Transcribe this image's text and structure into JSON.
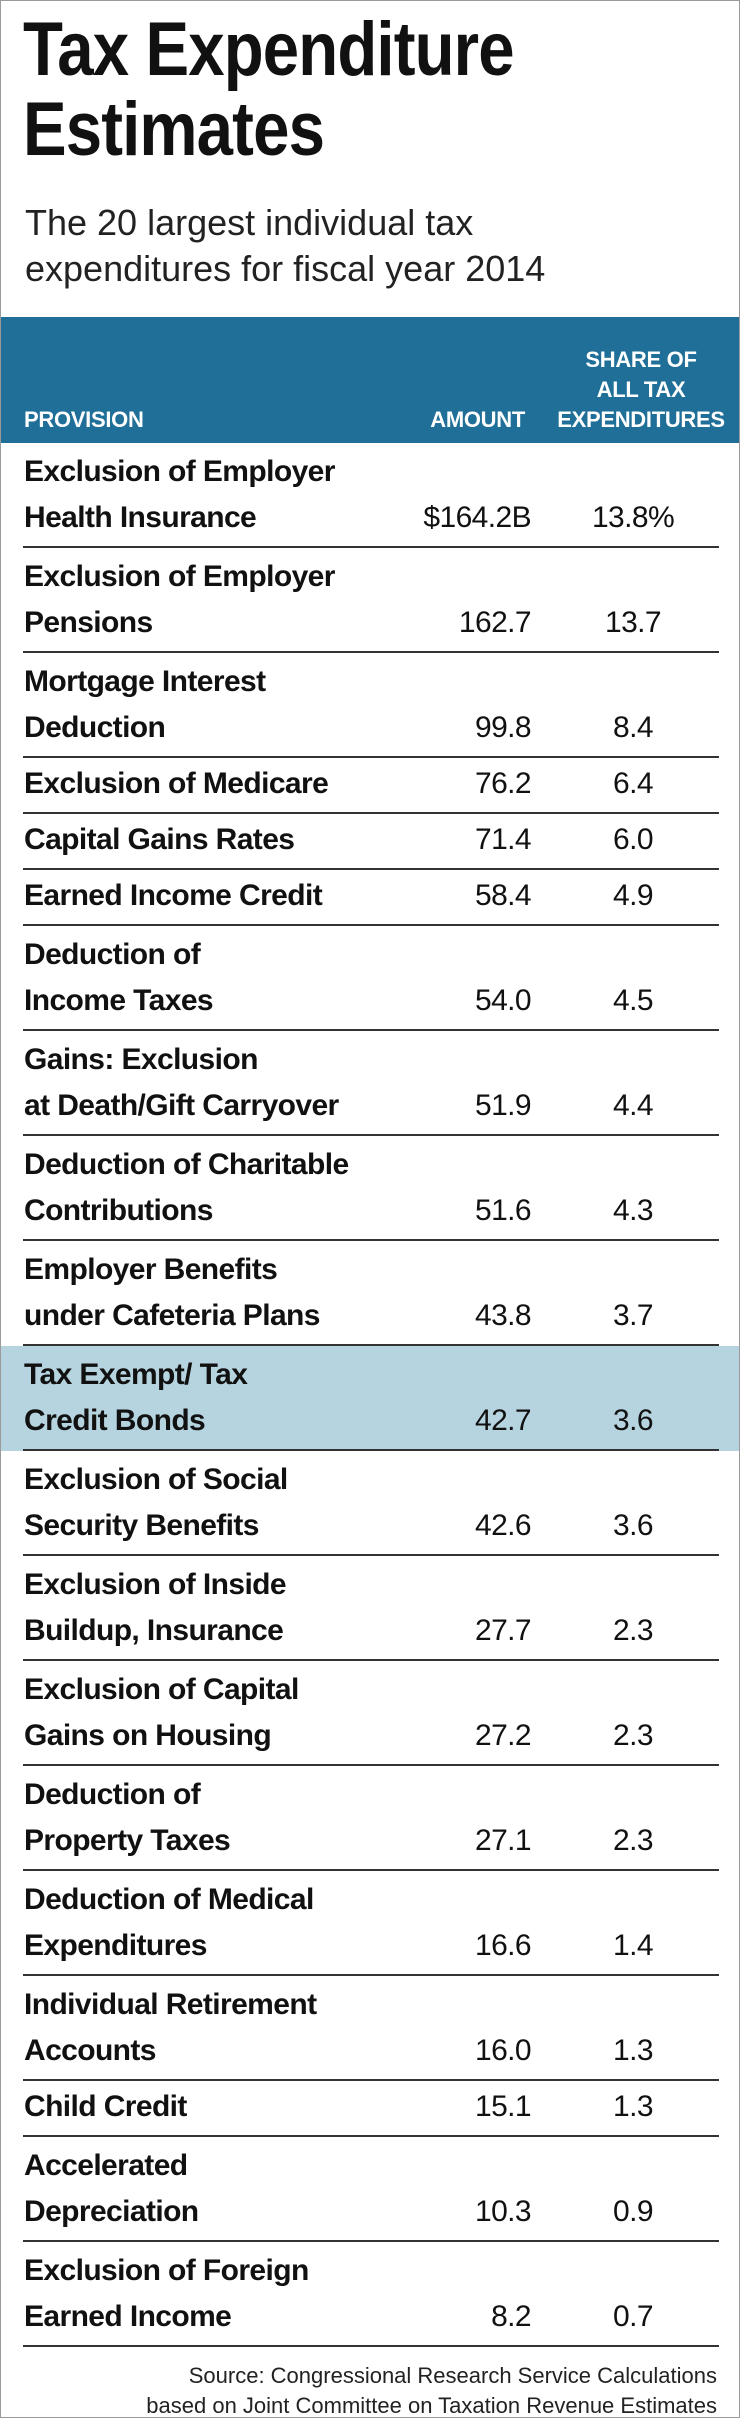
{
  "header": {
    "title": [
      "Tax Expenditure",
      "Estimates"
    ],
    "subtitle": [
      "The 20 largest individual tax",
      "expenditures for fiscal year 2014"
    ]
  },
  "table": {
    "columns": [
      [
        "PROVISION"
      ],
      [
        "AMOUNT"
      ],
      [
        "SHARE OF",
        "ALL TAX",
        "EXPENDITURES"
      ]
    ],
    "rows": [
      {
        "provision": [
          "Exclusion of Employer",
          "Health Insurance"
        ],
        "amount": "$164.2B",
        "share": "13.8%"
      },
      {
        "provision": [
          "Exclusion of Employer",
          "Pensions"
        ],
        "amount": "162.7",
        "share": "13.7"
      },
      {
        "provision": [
          "Mortgage Interest",
          "Deduction"
        ],
        "amount": "99.8",
        "share": "8.4"
      },
      {
        "provision": [
          "Exclusion of Medicare"
        ],
        "amount": "76.2",
        "share": "6.4"
      },
      {
        "provision": [
          "Capital Gains Rates"
        ],
        "amount": "71.4",
        "share": "6.0"
      },
      {
        "provision": [
          "Earned Income Credit"
        ],
        "amount": "58.4",
        "share": "4.9"
      },
      {
        "provision": [
          "Deduction of",
          "Income Taxes"
        ],
        "amount": "54.0",
        "share": "4.5"
      },
      {
        "provision": [
          "Gains: Exclusion",
          "at Death/Gift Carryover"
        ],
        "amount": "51.9",
        "share": "4.4"
      },
      {
        "provision": [
          "Deduction of Charitable",
          "Contributions"
        ],
        "amount": "51.6",
        "share": "4.3"
      },
      {
        "provision": [
          "Employer Benefits",
          "under Cafeteria Plans"
        ],
        "amount": "43.8",
        "share": "3.7"
      },
      {
        "provision": [
          "Tax Exempt/ Tax",
          "Credit Bonds"
        ],
        "amount": "42.7",
        "share": "3.6",
        "highlighted": true
      },
      {
        "provision": [
          "Exclusion of Social",
          "Security Benefits"
        ],
        "amount": "42.6",
        "share": "3.6"
      },
      {
        "provision": [
          "Exclusion of Inside",
          "Buildup, Insurance"
        ],
        "amount": "27.7",
        "share": "2.3"
      },
      {
        "provision": [
          "Exclusion of Capital",
          "Gains on Housing"
        ],
        "amount": "27.2",
        "share": "2.3"
      },
      {
        "provision": [
          "Deduction of",
          "Property Taxes"
        ],
        "amount": "27.1",
        "share": "2.3"
      },
      {
        "provision": [
          "Deduction of Medical",
          "Expenditures"
        ],
        "amount": "16.6",
        "share": "1.4"
      },
      {
        "provision": [
          "Individual Retirement",
          "Accounts"
        ],
        "amount": "16.0",
        "share": "1.3"
      },
      {
        "provision": [
          "Child Credit"
        ],
        "amount": "15.1",
        "share": "1.3"
      },
      {
        "provision": [
          "Accelerated",
          "Depreciation"
        ],
        "amount": "10.3",
        "share": "0.9"
      },
      {
        "provision": [
          "Exclusion of Foreign",
          "Earned Income"
        ],
        "amount": "8.2",
        "share": "0.7"
      }
    ]
  },
  "footer": {
    "source": [
      "Source: Congressional Research Service Calculations",
      "based on Joint Committee on Taxation Revenue Estimates"
    ]
  }
}
